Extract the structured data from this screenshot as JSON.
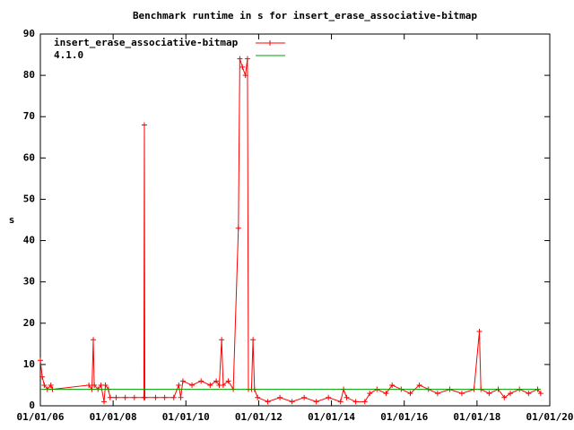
{
  "chart_data": {
    "type": "line",
    "title": "Benchmark runtime in s for insert_erase_associative-bitmap",
    "y_label": "s",
    "x": [
      "01/01/06",
      "01/20/06",
      "02/10/06",
      "03/10/06",
      "04/15/06",
      "05/01/06",
      "05/01/07",
      "06/01/07",
      "06/15/07",
      "06/25/07",
      "08/01/07",
      "09/01/07",
      "10/01/07",
      "10/15/07",
      "11/15/07",
      "12/01/07",
      "02/01/08",
      "05/01/08",
      "08/01/08",
      "11/05/08",
      "11/10/08",
      "11/15/08",
      "03/01/09",
      "06/01/09",
      "09/01/09",
      "10/20/09",
      "11/10/09",
      "12/01/09",
      "03/01/10",
      "06/01/10",
      "09/01/10",
      "11/01/10",
      "12/01/10",
      "12/25/10",
      "01/10/11",
      "03/01/11",
      "04/20/11",
      "06/10/11",
      "06/25/11",
      "07/20/11",
      "08/20/11",
      "09/10/11",
      "09/20/11",
      "10/20/11",
      "11/05/11",
      "11/20/11",
      "12/20/11",
      "04/01/12",
      "08/01/12",
      "12/01/12",
      "04/01/13",
      "08/01/13",
      "12/01/13",
      "04/01/14",
      "05/01/14",
      "06/01/14",
      "09/01/14",
      "12/01/14",
      "01/20/15",
      "04/01/15",
      "07/01/15",
      "09/01/15",
      "12/01/15",
      "03/01/16",
      "06/01/16",
      "09/01/16",
      "12/01/16",
      "04/01/17",
      "08/01/17",
      "12/01/17",
      "01/25/18",
      "02/10/18",
      "05/01/18",
      "08/01/18",
      "10/01/18",
      "12/01/18",
      "03/01/19",
      "06/01/19",
      "09/01/19",
      "10/01/19"
    ],
    "series": [
      {
        "name": "insert_erase_associative-bitmap",
        "color": "#ff0000",
        "values": [
          11,
          7,
          5,
          4,
          5,
          4,
          5,
          4,
          16,
          5,
          4,
          5,
          1,
          5,
          4,
          2,
          2,
          2,
          2,
          2,
          68,
          2,
          2,
          2,
          2,
          5,
          2,
          6,
          5,
          6,
          5,
          6,
          5,
          16,
          5,
          6,
          4,
          43,
          84,
          82,
          80,
          84,
          4,
          4,
          16,
          4,
          2,
          1,
          2,
          1,
          2,
          1,
          2,
          1,
          4,
          2,
          1,
          1,
          3,
          4,
          3,
          5,
          4,
          3,
          5,
          4,
          3,
          4,
          3,
          4,
          18,
          4,
          3,
          4,
          2,
          3,
          4,
          3,
          4,
          3
        ]
      },
      {
        "name": "4.1.0",
        "color": "#00a000",
        "x": [
          "01/01/06",
          "10/01/19"
        ],
        "values": [
          4,
          4
        ]
      }
    ],
    "xlim": [
      "01/01/06",
      "01/01/20"
    ],
    "xticks": [
      "01/01/06",
      "01/01/08",
      "01/01/10",
      "01/01/12",
      "01/01/14",
      "01/01/16",
      "01/01/18",
      "01/01/20"
    ],
    "ylim": [
      0,
      90
    ],
    "yticks": [
      0,
      10,
      20,
      30,
      40,
      50,
      60,
      70,
      80,
      90
    ]
  }
}
